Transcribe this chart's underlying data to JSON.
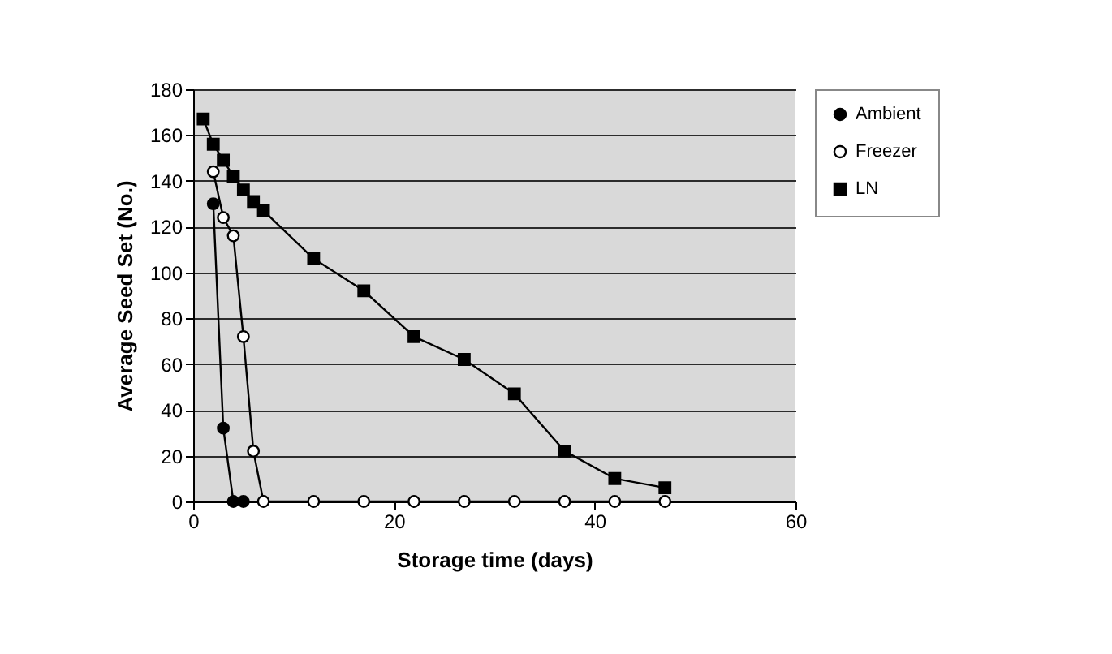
{
  "chart_data": {
    "type": "line",
    "xlabel": "Storage time (days)",
    "ylabel": "Average Seed Set (No.)",
    "xlim": [
      0,
      60
    ],
    "xticks": [
      0,
      20,
      40,
      60
    ],
    "ylim": [
      0,
      180
    ],
    "yticks": [
      0,
      20,
      40,
      60,
      80,
      100,
      120,
      140,
      160,
      180
    ],
    "grid": "y",
    "legend": "right",
    "series": [
      {
        "name": "Ambient",
        "color": "#000000",
        "marker": "circle",
        "x": [
          2,
          3,
          4,
          5
        ],
        "values": [
          130,
          32,
          0,
          0
        ]
      },
      {
        "name": "Freezer",
        "color": "#ffffff",
        "marker": "circle",
        "x": [
          2,
          3,
          4,
          5,
          6,
          7,
          12,
          17,
          22,
          27,
          32,
          37,
          42,
          47
        ],
        "values": [
          144,
          124,
          116,
          72,
          22,
          0,
          0,
          0,
          0,
          0,
          0,
          0,
          0,
          0
        ]
      },
      {
        "name": "LN",
        "color": "#000000",
        "marker": "square",
        "x": [
          1,
          2,
          3,
          4,
          5,
          6,
          7,
          12,
          17,
          22,
          27,
          32,
          37,
          42,
          47
        ],
        "values": [
          167,
          156,
          149,
          142,
          136,
          131,
          127,
          106,
          92,
          72,
          62,
          47,
          22,
          10,
          6
        ]
      }
    ]
  }
}
